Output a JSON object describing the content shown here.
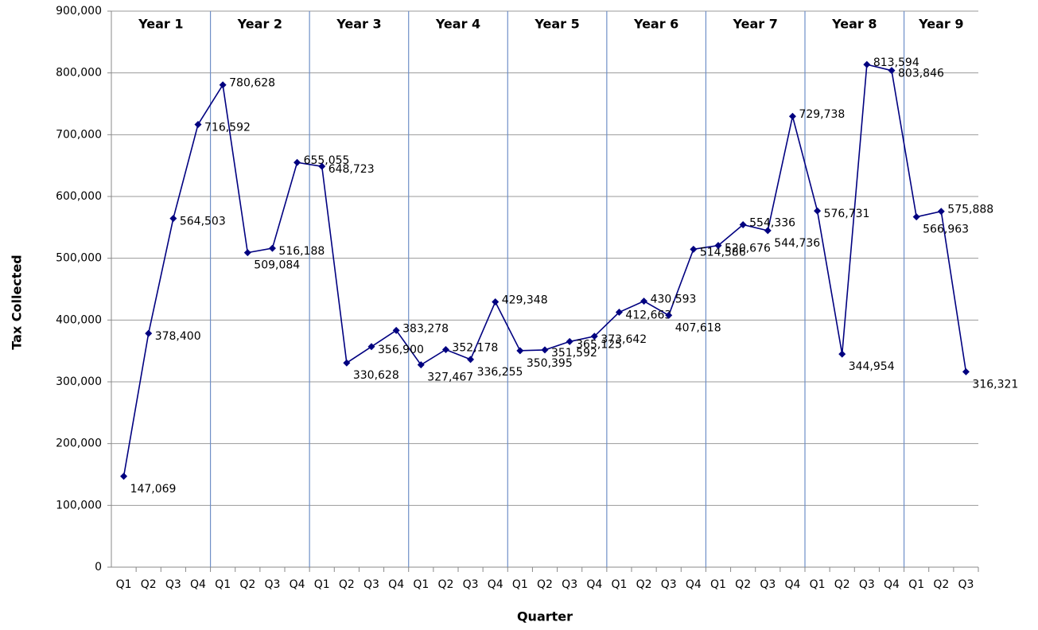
{
  "chart_data": {
    "type": "line",
    "y_label": "Tax Collected",
    "x_label": "Quarter",
    "groups": [
      "Year 1",
      "Year 2",
      "Year 3",
      "Year 4",
      "Year 5",
      "Year 6",
      "Year 7",
      "Year 8",
      "Year 9"
    ],
    "categories": [
      "Q1",
      "Q2",
      "Q3",
      "Q4",
      "Q1",
      "Q2",
      "Q3",
      "Q4",
      "Q1",
      "Q2",
      "Q3",
      "Q4",
      "Q1",
      "Q2",
      "Q3",
      "Q4",
      "Q1",
      "Q2",
      "Q3",
      "Q4",
      "Q1",
      "Q2",
      "Q3",
      "Q4",
      "Q1",
      "Q2",
      "Q3",
      "Q4",
      "Q1",
      "Q2",
      "Q3",
      "Q4",
      "Q1",
      "Q2",
      "Q3"
    ],
    "series": [
      {
        "color": "#000080",
        "values": [
          147069,
          378400,
          564503,
          716592,
          780628,
          509084,
          516188,
          655055,
          648723,
          330628,
          356900,
          383278,
          327467,
          352178,
          336255,
          429348,
          350395,
          351592,
          365125,
          373642,
          412663,
          430593,
          407618,
          514586,
          520676,
          554336,
          544736,
          729738,
          576731,
          344954,
          813594,
          803846,
          566963,
          575888,
          316321
        ],
        "value_labels": [
          "147,069",
          "378,400",
          "564,503",
          "716,592",
          "780,628",
          "509,084",
          "516,188",
          "655,055",
          "648,723",
          "330,628",
          "356,900",
          "383,278",
          "327,467",
          "352,178",
          "336,255",
          "429,348",
          "350,395",
          "351,592",
          "365,125",
          "373,642",
          "412,663",
          "430,593",
          "407,618",
          "514,586",
          "520,676",
          "554,336",
          "544,736",
          "729,738",
          "576,731",
          "344,954",
          "813,594",
          "803,846",
          "566,963",
          "575,888",
          "316,321"
        ]
      }
    ],
    "ylim": [
      0,
      900000
    ],
    "yticks": [
      0,
      {
        "value": 100000,
        "label": "100,000"
      },
      {
        "value": 200000,
        "label": "200,000"
      },
      {
        "value": 300000,
        "label": "300,000"
      },
      {
        "value": 400000,
        "label": "400,000"
      },
      {
        "value": 500000,
        "label": "500,000"
      },
      {
        "value": 600000,
        "label": "600,000"
      },
      {
        "value": 700000,
        "label": "700,000"
      },
      {
        "value": 800000,
        "label": "800,000"
      },
      {
        "value": 900000,
        "label": "900,000"
      }
    ],
    "grid": true
  }
}
